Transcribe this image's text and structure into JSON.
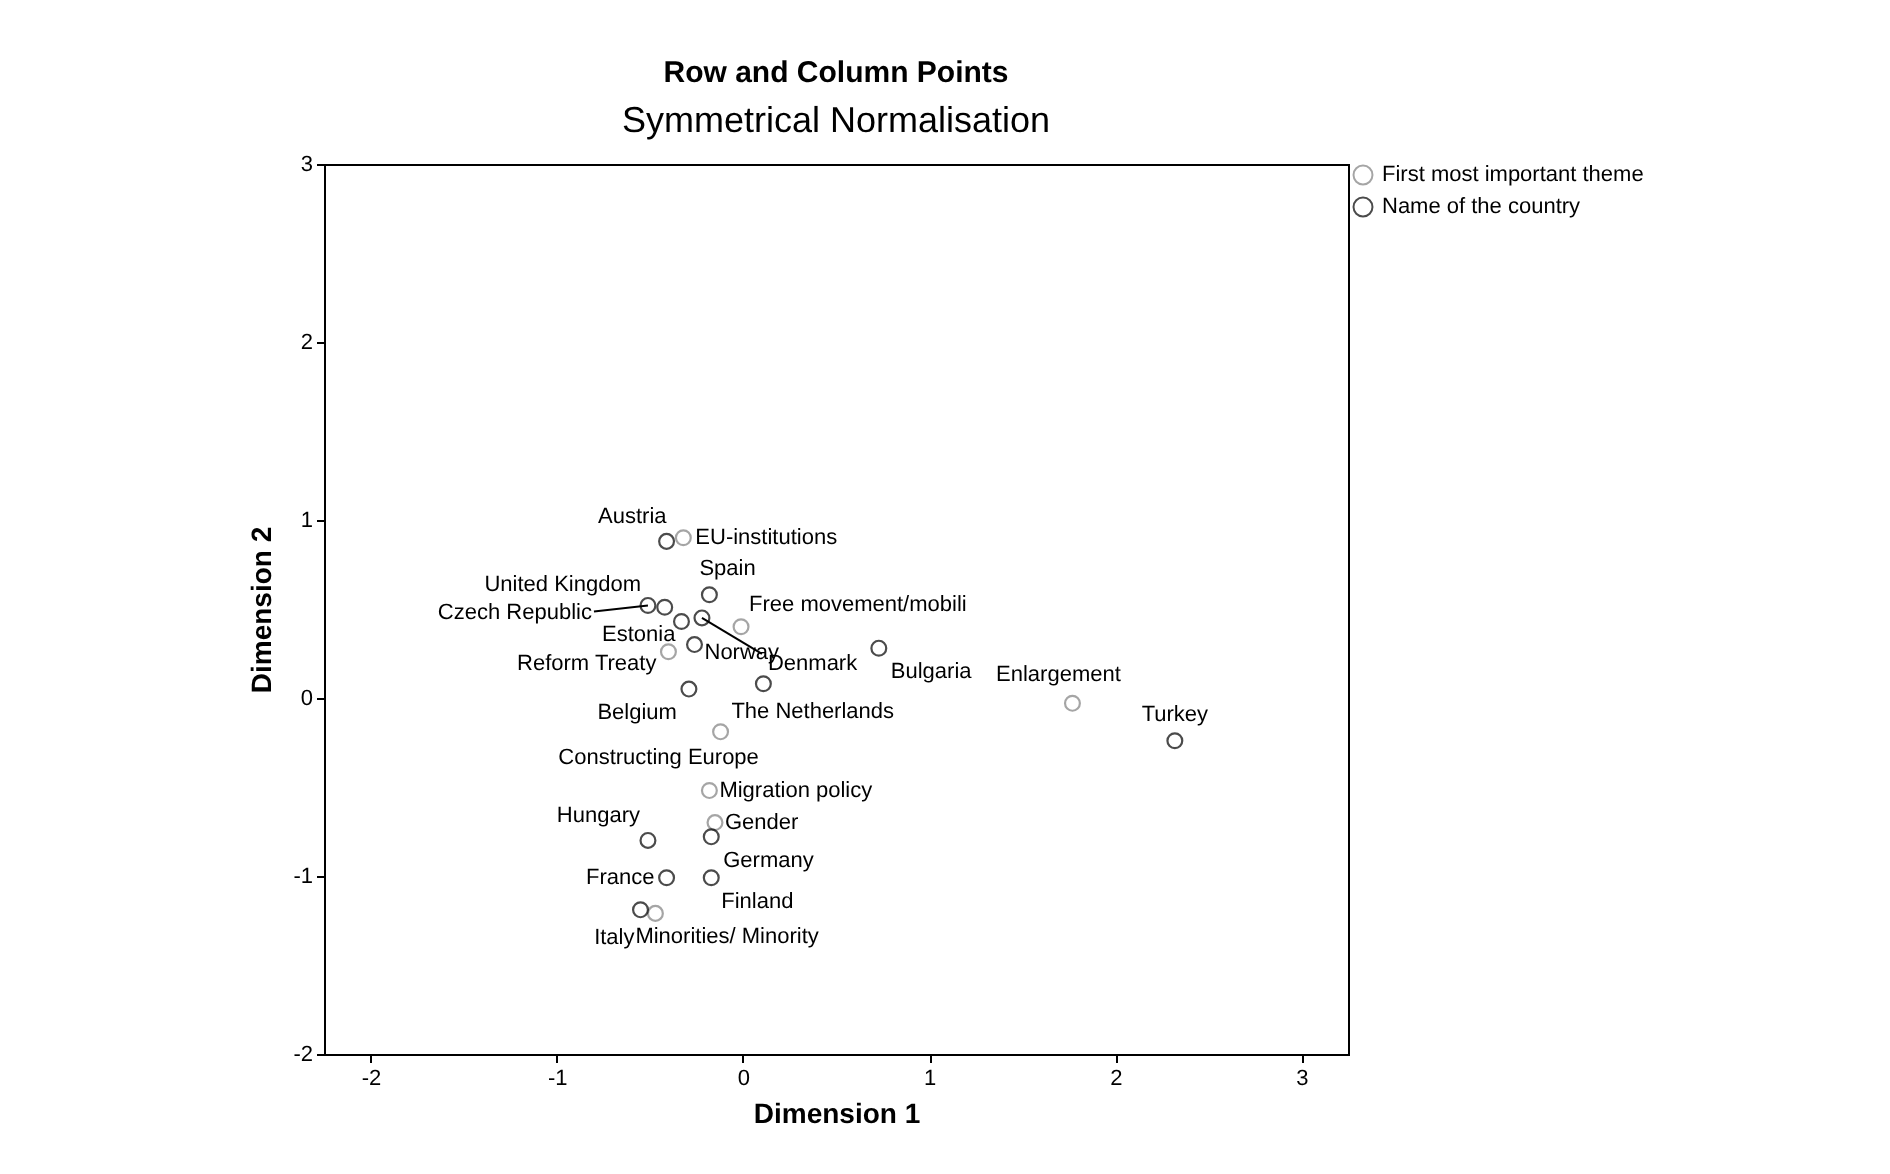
{
  "chart_data": {
    "type": "scatter",
    "title": "Row and Column Points",
    "subtitle": "Symmetrical Normalisation",
    "xlabel": "Dimension 1",
    "ylabel": "Dimension 2",
    "xlim": [
      -2.25,
      3.25
    ],
    "ylim": [
      -2,
      3
    ],
    "xticks": [
      -2,
      -1,
      0,
      1,
      2,
      3
    ],
    "yticks": [
      -2,
      -1,
      0,
      1,
      2,
      3
    ],
    "grid": false,
    "legend": "top right",
    "marker": "circle",
    "series": [
      {
        "name": "First most important theme",
        "color": "#808080",
        "x": [
          -0.32,
          -0.01,
          -0.4,
          1.77,
          -0.12,
          -0.18,
          -0.15,
          -0.47
        ],
        "values": [
          0.9,
          0.4,
          0.26,
          -0.03,
          -0.19,
          -0.52,
          -0.7,
          -1.21
        ]
      },
      {
        "name": "Name of the country",
        "color": "#000000",
        "x": [
          -0.41,
          -0.18,
          -0.51,
          -0.42,
          -0.33,
          -0.22,
          -0.26,
          -0.29,
          0.11,
          0.73,
          2.32,
          -0.51,
          -0.17,
          -0.41,
          -0.17,
          -0.55
        ],
        "values": [
          0.88,
          0.58,
          0.52,
          0.51,
          0.43,
          0.45,
          0.3,
          0.05,
          0.08,
          0.28,
          -0.24,
          -0.8,
          -0.78,
          -1.01,
          -1.01,
          -1.19
        ]
      }
    ],
    "annotations": [
      {
        "text": "EU-institutions",
        "x": -0.32,
        "y": 0.9
      },
      {
        "text": "Free movement/mobili",
        "x": -0.01,
        "y": 0.4
      },
      {
        "text": "Reform Treaty",
        "x": -0.4,
        "y": 0.26
      },
      {
        "text": "Enlargement",
        "x": 1.77,
        "y": -0.03
      },
      {
        "text": "Constructing Europe",
        "x": -0.12,
        "y": -0.19
      },
      {
        "text": "Migration policy",
        "x": -0.18,
        "y": -0.52
      },
      {
        "text": "Gender",
        "x": -0.15,
        "y": -0.7
      },
      {
        "text": "Minorities/ Minority",
        "x": -0.47,
        "y": -1.21
      },
      {
        "text": "Austria",
        "x": -0.41,
        "y": 0.88
      },
      {
        "text": "Spain",
        "x": -0.18,
        "y": 0.58
      },
      {
        "text": "Czech Republic",
        "x": -0.51,
        "y": 0.52
      },
      {
        "text": "United Kingdom",
        "x": -0.42,
        "y": 0.51
      },
      {
        "text": "Estonia",
        "x": -0.33,
        "y": 0.43
      },
      {
        "text": "Denmark",
        "x": -0.22,
        "y": 0.45
      },
      {
        "text": "Norway",
        "x": -0.26,
        "y": 0.3
      },
      {
        "text": "Belgium",
        "x": -0.29,
        "y": 0.05
      },
      {
        "text": "The Netherlands",
        "x": 0.11,
        "y": 0.08
      },
      {
        "text": "Bulgaria",
        "x": 0.73,
        "y": 0.28
      },
      {
        "text": "Turkey",
        "x": 2.32,
        "y": -0.24
      },
      {
        "text": "Hungary",
        "x": -0.51,
        "y": -0.8
      },
      {
        "text": "Germany",
        "x": -0.17,
        "y": -0.78
      },
      {
        "text": "France",
        "x": -0.41,
        "y": -1.01
      },
      {
        "text": "Finland",
        "x": -0.17,
        "y": -1.01
      },
      {
        "text": "Italy",
        "x": -0.55,
        "y": -1.19
      }
    ]
  }
}
